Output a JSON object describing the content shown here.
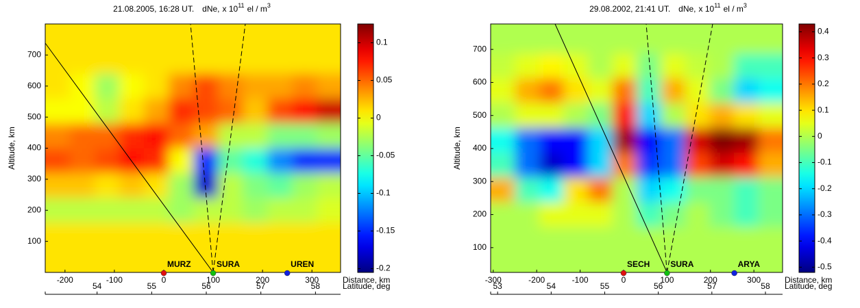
{
  "chart_data": [
    {
      "type": "contour",
      "title": "21.08.2005, 16:28 UT.",
      "quantity": "dNe,",
      "unit_prefix": "x 10",
      "unit_exp": "11",
      "unit_mid": "el / m",
      "unit_exp2": "3",
      "ylabel": "Altitude, km",
      "xlabel": "Distance, km",
      "x2label": "Latitude, deg",
      "xlim": [
        -240,
        358
      ],
      "xticks": [
        -200,
        -100,
        0,
        100,
        200,
        300
      ],
      "ylim": [
        0,
        800
      ],
      "yticks": [
        100,
        200,
        300,
        400,
        500,
        600,
        700
      ],
      "x2lim": [
        53.05,
        58.46
      ],
      "x2ticks": [
        54,
        55,
        56,
        57,
        58
      ],
      "zlim": [
        -0.205,
        0.125
      ],
      "zticks": [
        -0.2,
        -0.15,
        -0.1,
        -0.05,
        0,
        0.05,
        0.1
      ],
      "stations": [
        {
          "name": "MURZ",
          "distance": 0,
          "color": "#e01010"
        },
        {
          "name": "SURA",
          "distance": 100,
          "color": "#10c010"
        },
        {
          "name": "UREN",
          "distance": 250,
          "color": "#1020e0"
        }
      ],
      "grid": {
        "x": [
          -215,
          -165,
          -115,
          -65,
          -15,
          35,
          85,
          135,
          185,
          235,
          285,
          335
        ],
        "y": [
          760,
          680,
          600,
          520,
          440,
          360,
          280,
          200,
          120,
          40
        ],
        "z": [
          [
            0.01,
            0.01,
            0.01,
            0.01,
            0.01,
            0.01,
            0.01,
            0.01,
            0.01,
            0.01,
            0.01,
            0.01
          ],
          [
            0.01,
            0.01,
            0.01,
            0.01,
            0.01,
            0.01,
            0.01,
            0.01,
            0.01,
            0.01,
            0.01,
            0.01
          ],
          [
            0.01,
            0,
            -0.03,
            0,
            0.01,
            0.04,
            0.06,
            0.04,
            0.03,
            0.03,
            0.04,
            0.03
          ],
          [
            0,
            0,
            -0.02,
            0.01,
            0.03,
            0.07,
            0.06,
            0.05,
            0.02,
            0.06,
            0.08,
            0.1
          ],
          [
            0.04,
            0.05,
            0.05,
            0.07,
            0.08,
            0.05,
            0.03,
            -0.02,
            -0.02,
            -0.04,
            -0.04,
            -0.03
          ],
          [
            0.06,
            0.05,
            0.06,
            0.08,
            0.07,
            0,
            -0.15,
            -0.05,
            -0.07,
            -0.12,
            -0.15,
            -0.15
          ],
          [
            0.02,
            0.02,
            0.01,
            0.02,
            0.01,
            -0.03,
            -0.18,
            -0.02,
            -0.04,
            -0.05,
            -0.03,
            -0.02
          ],
          [
            -0.02,
            -0.02,
            -0.02,
            -0.02,
            -0.02,
            -0.03,
            -0.02,
            -0.02,
            -0.03,
            -0.02,
            -0.02,
            -0.01
          ],
          [
            0.01,
            0.01,
            0.01,
            0.01,
            0.01,
            0.01,
            0.01,
            0.01,
            0.01,
            0.01,
            0.01,
            0.01
          ],
          [
            0.01,
            0.01,
            0.01,
            0.01,
            0.01,
            0.01,
            0.01,
            0.01,
            0.01,
            0.01,
            0.01,
            0.01
          ]
        ]
      }
    },
    {
      "type": "contour",
      "title": "29.08.2002, 21:41 UT.",
      "quantity": "dNe,",
      "unit_prefix": "x 10",
      "unit_exp": "11",
      "unit_mid": "el / m",
      "unit_exp2": "3",
      "ylabel": "Altitude, km",
      "xlabel": "Distance, km",
      "x2label": "Latitude, deg",
      "xlim": [
        -306,
        366
      ],
      "xticks": [
        -300,
        -200,
        -100,
        0,
        100,
        200,
        300
      ],
      "ylim": [
        25,
        777
      ],
      "yticks": [
        100,
        200,
        300,
        400,
        500,
        600,
        700
      ],
      "x2lim": [
        52.87,
        58.32
      ],
      "x2ticks": [
        53,
        54,
        55,
        56,
        57,
        58
      ],
      "zlim": [
        -0.52,
        0.43
      ],
      "zticks": [
        -0.5,
        -0.4,
        -0.3,
        -0.2,
        -0.1,
        0,
        0.1,
        0.2,
        0.3,
        0.4
      ],
      "stations": [
        {
          "name": "SECH",
          "distance": 0,
          "color": "#e01010"
        },
        {
          "name": "SURA",
          "distance": 100,
          "color": "#10c010"
        },
        {
          "name": "ARYA",
          "distance": 255,
          "color": "#1020e0"
        }
      ],
      "grid": {
        "x": [
          -278,
          -222,
          -166,
          -110,
          -54,
          2,
          58,
          114,
          170,
          226,
          282,
          338
        ],
        "y": [
          725,
          650,
          575,
          500,
          425,
          350,
          275,
          200,
          125,
          50
        ],
        "z": [
          [
            0,
            0,
            0,
            0,
            0,
            0,
            0,
            0,
            0,
            0,
            0,
            0
          ],
          [
            0.02,
            0.05,
            0.08,
            0.05,
            0,
            0.05,
            -0.05,
            0.05,
            0.02,
            0,
            -0.1,
            -0.1
          ],
          [
            0.05,
            0.15,
            0.2,
            0.1,
            0.05,
            0.2,
            -0.1,
            0.15,
            0.05,
            -0.05,
            -0.2,
            -0.15
          ],
          [
            0,
            0.05,
            0.05,
            0,
            -0.05,
            0.3,
            -0.2,
            0,
            0.1,
            0.15,
            0.1,
            0.05
          ],
          [
            -0.15,
            -0.3,
            -0.4,
            -0.4,
            -0.2,
            0.4,
            -0.4,
            -0.3,
            0.35,
            0.43,
            0.4,
            0.2
          ],
          [
            -0.1,
            -0.3,
            -0.45,
            -0.4,
            -0.2,
            0.2,
            -0.35,
            -0.3,
            0.25,
            0.35,
            0.3,
            0.15
          ],
          [
            0.15,
            -0.1,
            -0.15,
            0.1,
            0.2,
            0,
            -0.2,
            -0.15,
            -0.05,
            -0.05,
            -0.1,
            -0.05
          ],
          [
            0,
            0,
            0.05,
            0.05,
            0.05,
            0,
            -0.1,
            -0.05,
            0,
            -0.05,
            -0.1,
            -0.05
          ],
          [
            0,
            0,
            0,
            0,
            0,
            0,
            0,
            0,
            0,
            0,
            0,
            0
          ],
          [
            0,
            0,
            0,
            0,
            0,
            0,
            0,
            0,
            0,
            0,
            0,
            0
          ]
        ]
      }
    }
  ]
}
